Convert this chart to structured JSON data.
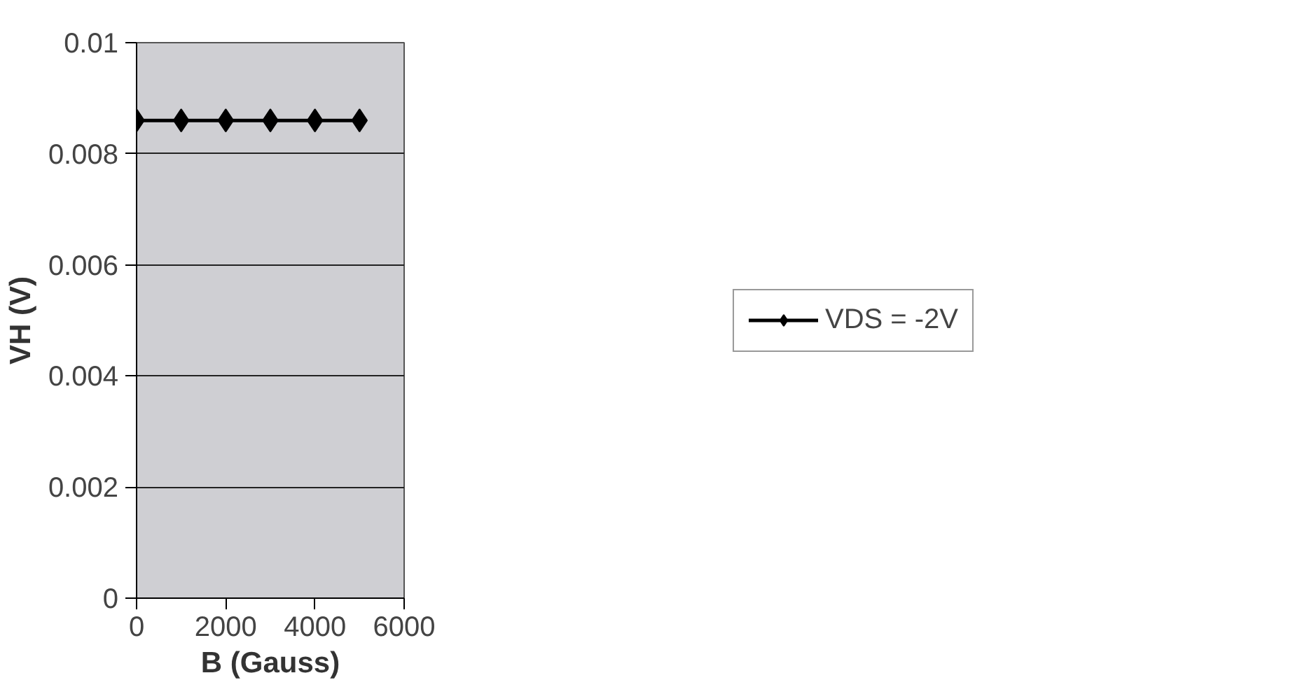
{
  "chart_data": {
    "type": "line",
    "xlabel": "B (Gauss)",
    "ylabel": "VH (V)",
    "x": [
      0,
      1000,
      2000,
      3000,
      4000,
      5000
    ],
    "series": [
      {
        "name": "VDS = -2V",
        "color": "#000000",
        "values": [
          0.0086,
          0.0086,
          0.0086,
          0.0086,
          0.0086,
          0.0086
        ]
      }
    ],
    "xlim": [
      0,
      6000
    ],
    "xticks": [
      0,
      2000,
      4000,
      6000
    ],
    "ylim": [
      0,
      0.01
    ],
    "yticks": [
      0,
      0.002,
      0.004,
      0.006,
      0.008,
      0.01
    ],
    "grid": "y",
    "legend": "right",
    "marker": "diamond",
    "line_style": "solid"
  }
}
